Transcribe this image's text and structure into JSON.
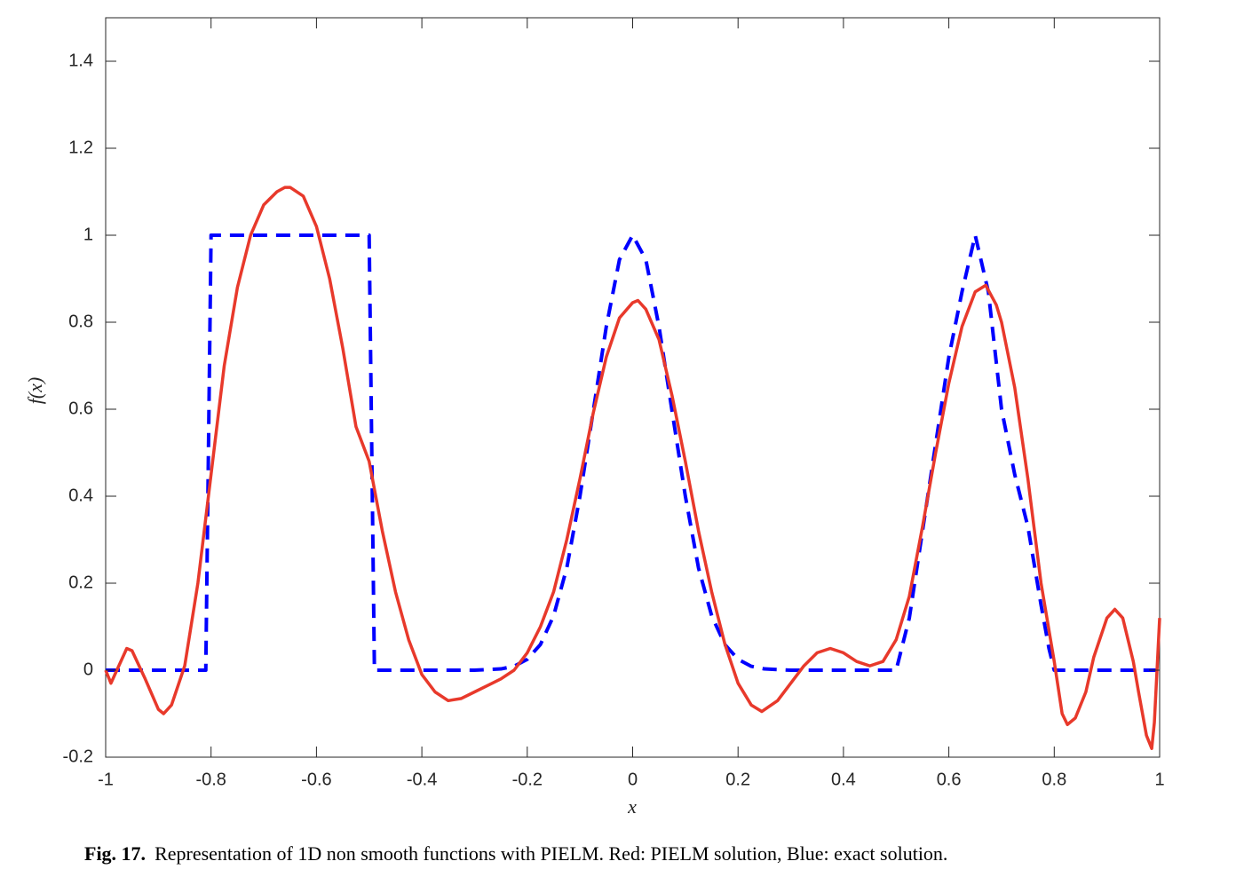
{
  "chart_data": {
    "type": "line",
    "xlabel": "x",
    "ylabel": "f(x)",
    "caption_label": "Fig. 17.",
    "caption": "Representation of 1D non smooth functions with PIELM. Red: PIELM solution, Blue: exact solution.",
    "xlim": [
      -1,
      1
    ],
    "ylim": [
      -0.2,
      1.5
    ],
    "xticks": [
      -1,
      -0.8,
      -0.6,
      -0.4,
      -0.2,
      0,
      0.2,
      0.4,
      0.6,
      0.8,
      1
    ],
    "yticks": [
      -0.2,
      0,
      0.2,
      0.4,
      0.6,
      0.8,
      1,
      1.2,
      1.4
    ],
    "grid": false,
    "series": [
      {
        "color": "#0000ff",
        "dash": true,
        "x": [
          -1,
          -0.81,
          -0.8,
          -0.5,
          -0.49,
          -0.3,
          -0.25,
          -0.225,
          -0.2,
          -0.175,
          -0.15,
          -0.125,
          -0.1,
          -0.075,
          -0.05,
          -0.025,
          0,
          0.025,
          0.05,
          0.075,
          0.1,
          0.125,
          0.15,
          0.175,
          0.2,
          0.225,
          0.25,
          0.3,
          0.5,
          0.525,
          0.55,
          0.575,
          0.6,
          0.625,
          0.65,
          0.675,
          0.7,
          0.725,
          0.75,
          0.775,
          0.79,
          0.8,
          1
        ],
        "values": [
          0,
          0,
          1,
          1,
          0,
          0,
          0.003,
          0.009,
          0.025,
          0.059,
          0.125,
          0.235,
          0.4,
          0.594,
          0.79,
          0.944,
          1,
          0.944,
          0.79,
          0.594,
          0.4,
          0.235,
          0.125,
          0.059,
          0.025,
          0.009,
          0.003,
          0,
          0,
          0.12,
          0.32,
          0.52,
          0.72,
          0.87,
          1,
          0.87,
          0.6,
          0.45,
          0.33,
          0.15,
          0.05,
          0,
          0
        ]
      },
      {
        "color": "#e8392b",
        "dash": false,
        "x": [
          -1,
          -0.99,
          -0.975,
          -0.96,
          -0.95,
          -0.925,
          -0.9,
          -0.89,
          -0.875,
          -0.85,
          -0.825,
          -0.8,
          -0.775,
          -0.75,
          -0.725,
          -0.7,
          -0.675,
          -0.66,
          -0.65,
          -0.625,
          -0.6,
          -0.575,
          -0.55,
          -0.525,
          -0.5,
          -0.475,
          -0.45,
          -0.425,
          -0.4,
          -0.375,
          -0.35,
          -0.325,
          -0.3,
          -0.275,
          -0.25,
          -0.225,
          -0.2,
          -0.175,
          -0.15,
          -0.125,
          -0.1,
          -0.075,
          -0.05,
          -0.025,
          0,
          0.01,
          0.025,
          0.05,
          0.075,
          0.1,
          0.125,
          0.15,
          0.175,
          0.2,
          0.225,
          0.245,
          0.275,
          0.3,
          0.325,
          0.35,
          0.375,
          0.4,
          0.425,
          0.45,
          0.475,
          0.5,
          0.525,
          0.55,
          0.575,
          0.6,
          0.625,
          0.65,
          0.67,
          0.69,
          0.7,
          0.725,
          0.75,
          0.775,
          0.8,
          0.815,
          0.825,
          0.84,
          0.86,
          0.875,
          0.9,
          0.915,
          0.93,
          0.95,
          0.96,
          0.975,
          0.985,
          0.99,
          1
        ],
        "values": [
          0,
          -0.03,
          0.01,
          0.05,
          0.045,
          -0.02,
          -0.09,
          -0.1,
          -0.08,
          0.01,
          0.2,
          0.45,
          0.7,
          0.88,
          1.0,
          1.07,
          1.1,
          1.11,
          1.11,
          1.09,
          1.02,
          0.9,
          0.74,
          0.56,
          0.48,
          0.32,
          0.18,
          0.07,
          -0.01,
          -0.05,
          -0.07,
          -0.065,
          -0.05,
          -0.035,
          -0.02,
          0.0,
          0.04,
          0.1,
          0.18,
          0.3,
          0.44,
          0.59,
          0.72,
          0.81,
          0.845,
          0.85,
          0.83,
          0.76,
          0.63,
          0.48,
          0.32,
          0.18,
          0.06,
          -0.03,
          -0.08,
          -0.095,
          -0.07,
          -0.03,
          0.01,
          0.04,
          0.05,
          0.04,
          0.02,
          0.01,
          0.02,
          0.07,
          0.17,
          0.33,
          0.5,
          0.66,
          0.79,
          0.87,
          0.885,
          0.84,
          0.8,
          0.65,
          0.44,
          0.2,
          0.02,
          -0.1,
          -0.125,
          -0.11,
          -0.05,
          0.03,
          0.12,
          0.14,
          0.12,
          0.02,
          -0.05,
          -0.15,
          -0.18,
          -0.12,
          0.12
        ]
      }
    ]
  }
}
